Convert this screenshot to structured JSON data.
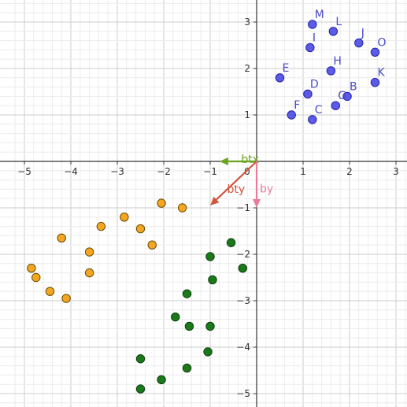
{
  "colors": {
    "grid_minor": "#ececec",
    "grid_major": "#cccccc",
    "axis": "#333333",
    "blue_fill": "#5b5be8",
    "blue_stroke": "#2222aa",
    "blue_label": "#4a4acc",
    "orange_fill": "#f4a623",
    "orange_stroke": "#6a4a00",
    "green_fill": "#1a7a1a",
    "green_stroke": "#0d3d0d",
    "btx": "#6aa31f",
    "bty": "#d3543c",
    "by": "#ec7a9a"
  },
  "chart_data": {
    "type": "scatter",
    "xlim": [
      -5.3,
      3.2
    ],
    "ylim": [
      -5.3,
      3.4
    ],
    "x_ticks": [
      -5,
      -4,
      -3,
      -2,
      -1,
      1,
      2,
      3
    ],
    "y_ticks": [
      -5,
      -4,
      -3,
      -2,
      -1,
      1,
      2,
      3
    ],
    "x_tick_labels": [
      "−5",
      "−4",
      "−3",
      "−2",
      "−1",
      "1",
      "2",
      "3"
    ],
    "y_tick_labels": [
      "−5",
      "−4",
      "−3",
      "−2",
      "−1",
      "1",
      "2",
      "3"
    ],
    "origin_label": "0",
    "grid": true,
    "labeled_points": [
      {
        "label": "M",
        "x": 1.2,
        "y": 2.95
      },
      {
        "label": "L",
        "x": 1.65,
        "y": 2.8
      },
      {
        "label": "I",
        "x": 1.15,
        "y": 2.45
      },
      {
        "label": "J",
        "x": 2.2,
        "y": 2.55
      },
      {
        "label": "O",
        "x": 2.55,
        "y": 2.35
      },
      {
        "label": "E",
        "x": 0.5,
        "y": 1.8
      },
      {
        "label": "H",
        "x": 1.6,
        "y": 1.95
      },
      {
        "label": "D",
        "x": 1.1,
        "y": 1.45
      },
      {
        "label": "K",
        "x": 2.55,
        "y": 1.7
      },
      {
        "label": "B",
        "x": 1.95,
        "y": 1.4
      },
      {
        "label": "G",
        "x": 1.7,
        "y": 1.2
      },
      {
        "label": "F",
        "x": 0.75,
        "y": 1.0
      },
      {
        "label": "C",
        "x": 1.2,
        "y": 0.9
      }
    ],
    "orange_points": [
      {
        "x": -2.05,
        "y": -0.9
      },
      {
        "x": -1.6,
        "y": -1.0
      },
      {
        "x": -2.85,
        "y": -1.2
      },
      {
        "x": -3.35,
        "y": -1.4
      },
      {
        "x": -2.5,
        "y": -1.45
      },
      {
        "x": -4.2,
        "y": -1.65
      },
      {
        "x": -2.25,
        "y": -1.8
      },
      {
        "x": -3.6,
        "y": -1.95
      },
      {
        "x": -4.85,
        "y": -2.3
      },
      {
        "x": -3.6,
        "y": -2.4
      },
      {
        "x": -4.75,
        "y": -2.5
      },
      {
        "x": -4.45,
        "y": -2.8
      },
      {
        "x": -4.1,
        "y": -2.95
      }
    ],
    "green_points": [
      {
        "x": -0.55,
        "y": -1.75
      },
      {
        "x": -1.0,
        "y": -2.05
      },
      {
        "x": -0.3,
        "y": -2.3
      },
      {
        "x": -0.95,
        "y": -2.55
      },
      {
        "x": -1.5,
        "y": -2.85
      },
      {
        "x": -1.75,
        "y": -3.35
      },
      {
        "x": -1.45,
        "y": -3.55
      },
      {
        "x": -1.0,
        "y": -3.55
      },
      {
        "x": -1.05,
        "y": -4.1
      },
      {
        "x": -2.5,
        "y": -4.25
      },
      {
        "x": -1.5,
        "y": -4.45
      },
      {
        "x": -2.05,
        "y": -4.7
      },
      {
        "x": -2.5,
        "y": -4.9
      }
    ],
    "vectors": [
      {
        "label": "btx",
        "from": [
          0,
          0
        ],
        "to": [
          -0.8,
          0
        ],
        "color": "#6aa31f"
      },
      {
        "label": "bty",
        "from": [
          0,
          0
        ],
        "to": [
          -1.0,
          -0.95
        ],
        "color": "#d3543c"
      },
      {
        "label": "by",
        "from": [
          0,
          0
        ],
        "to": [
          0,
          -1.0
        ],
        "color": "#ec7a9a"
      }
    ]
  }
}
